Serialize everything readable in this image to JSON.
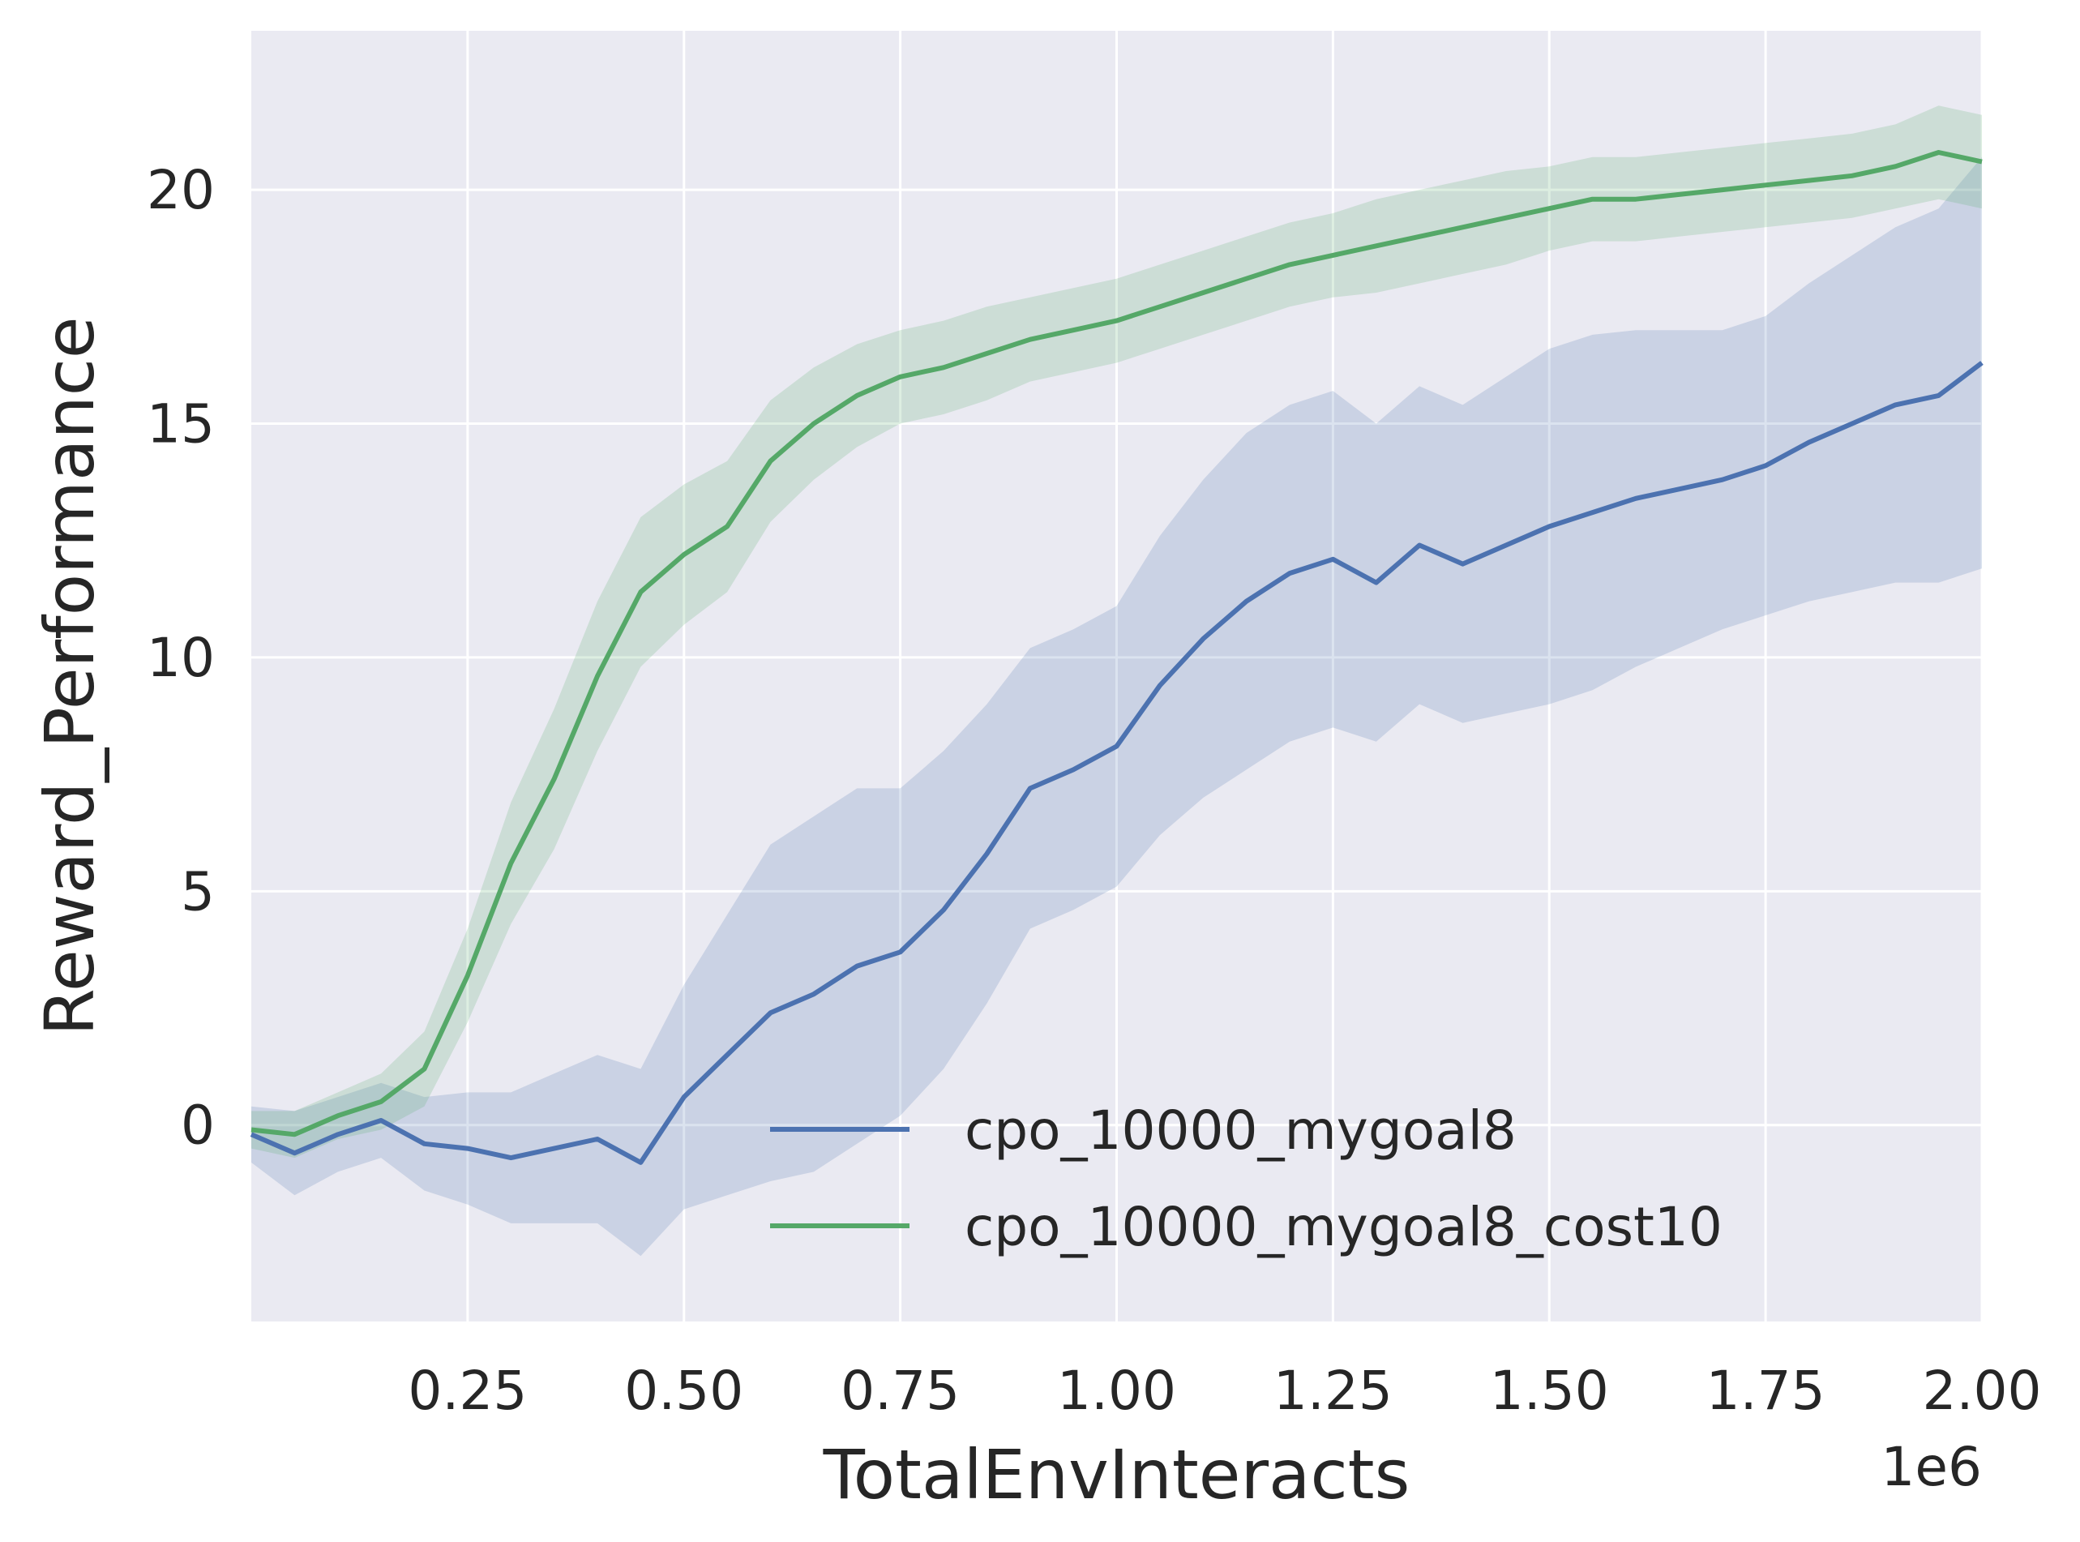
{
  "chart_data": {
    "type": "line",
    "title": "",
    "xlabel": "TotalEnvInteracts",
    "ylabel": "Reward_Performance",
    "x_offset_label": "1e6",
    "xlim": [
      0.0,
      2.0
    ],
    "ylim": [
      -4.2,
      23.4
    ],
    "x_ticks": [
      0.25,
      0.5,
      0.75,
      1.0,
      1.25,
      1.5,
      1.75,
      2.0
    ],
    "x_tick_labels": [
      "0.25",
      "0.50",
      "0.75",
      "1.00",
      "1.25",
      "1.50",
      "1.75",
      "2.00"
    ],
    "y_ticks": [
      0,
      5,
      10,
      15,
      20
    ],
    "y_tick_labels": [
      "0",
      "5",
      "10",
      "15",
      "20"
    ],
    "grid": true,
    "legend_position": "lower right",
    "colors": {
      "background": "#eaeaf2",
      "grid": "#ffffff",
      "series_blue": "#4c72b0",
      "series_green": "#55a868"
    },
    "series": [
      {
        "name": "cpo_10000_mygoal8",
        "color": "#4c72b0",
        "x": [
          0.0,
          0.05,
          0.1,
          0.15,
          0.2,
          0.25,
          0.3,
          0.35,
          0.4,
          0.45,
          0.5,
          0.55,
          0.6,
          0.65,
          0.7,
          0.75,
          0.8,
          0.85,
          0.9,
          0.95,
          1.0,
          1.05,
          1.1,
          1.15,
          1.2,
          1.25,
          1.3,
          1.35,
          1.4,
          1.45,
          1.5,
          1.55,
          1.6,
          1.65,
          1.7,
          1.75,
          1.8,
          1.85,
          1.9,
          1.95,
          2.0
        ],
        "y": [
          -0.2,
          -0.6,
          -0.2,
          0.1,
          -0.4,
          -0.5,
          -0.7,
          -0.5,
          -0.3,
          -0.8,
          0.6,
          1.5,
          2.4,
          2.8,
          3.4,
          3.7,
          4.6,
          5.8,
          7.2,
          7.6,
          8.1,
          9.4,
          10.4,
          11.2,
          11.8,
          12.1,
          11.6,
          12.4,
          12.0,
          12.4,
          12.8,
          13.1,
          13.4,
          13.6,
          13.8,
          14.1,
          14.6,
          15.0,
          15.4,
          15.6,
          16.3
        ],
        "band_half_width": [
          0.6,
          0.9,
          0.8,
          0.8,
          1.0,
          1.2,
          1.4,
          1.6,
          1.8,
          2.0,
          2.4,
          3.0,
          3.6,
          3.8,
          3.8,
          3.5,
          3.4,
          3.2,
          3.0,
          3.0,
          3.0,
          3.2,
          3.4,
          3.6,
          3.6,
          3.6,
          3.4,
          3.4,
          3.4,
          3.6,
          3.8,
          3.8,
          3.6,
          3.4,
          3.2,
          3.2,
          3.4,
          3.6,
          3.8,
          4.0,
          4.4
        ]
      },
      {
        "name": "cpo_10000_mygoal8_cost10",
        "color": "#55a868",
        "x": [
          0.0,
          0.05,
          0.1,
          0.15,
          0.2,
          0.25,
          0.3,
          0.35,
          0.4,
          0.45,
          0.5,
          0.55,
          0.6,
          0.65,
          0.7,
          0.75,
          0.8,
          0.85,
          0.9,
          0.95,
          1.0,
          1.05,
          1.1,
          1.15,
          1.2,
          1.25,
          1.3,
          1.35,
          1.4,
          1.45,
          1.5,
          1.55,
          1.6,
          1.65,
          1.7,
          1.75,
          1.8,
          1.85,
          1.9,
          1.95,
          2.0
        ],
        "y": [
          -0.1,
          -0.2,
          0.2,
          0.5,
          1.2,
          3.2,
          5.6,
          7.4,
          9.6,
          11.4,
          12.2,
          12.8,
          14.2,
          15.0,
          15.6,
          16.0,
          16.2,
          16.5,
          16.8,
          17.0,
          17.2,
          17.5,
          17.8,
          18.1,
          18.4,
          18.6,
          18.8,
          19.0,
          19.2,
          19.4,
          19.6,
          19.8,
          19.8,
          19.9,
          20.0,
          20.1,
          20.2,
          20.3,
          20.5,
          20.8,
          20.6
        ],
        "band_half_width": [
          0.4,
          0.5,
          0.5,
          0.6,
          0.8,
          1.0,
          1.3,
          1.5,
          1.6,
          1.6,
          1.5,
          1.4,
          1.3,
          1.2,
          1.1,
          1.0,
          1.0,
          1.0,
          0.9,
          0.9,
          0.9,
          0.9,
          0.9,
          0.9,
          0.9,
          0.9,
          1.0,
          1.0,
          1.0,
          1.0,
          0.9,
          0.9,
          0.9,
          0.9,
          0.9,
          0.9,
          0.9,
          0.9,
          0.9,
          1.0,
          1.0
        ]
      }
    ]
  }
}
